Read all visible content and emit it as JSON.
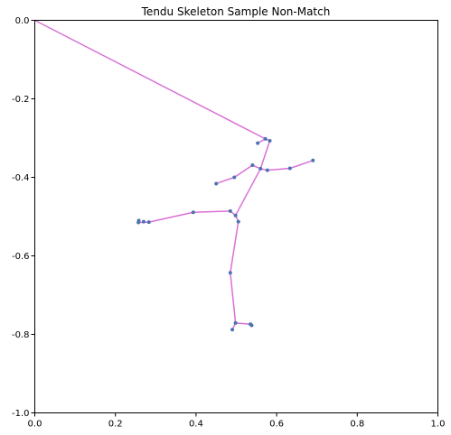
{
  "chart_data": {
    "type": "scatter",
    "title": "Tendu Skeleton Sample Non-Match",
    "xlabel": "",
    "ylabel": "",
    "xlim": [
      0.0,
      1.0
    ],
    "ylim": [
      -1.0,
      0.0
    ],
    "xticks": [
      "0.0",
      "0.2",
      "0.4",
      "0.6",
      "0.8",
      "1.0"
    ],
    "yticks": [
      "0.0",
      "-0.2",
      "-0.4",
      "-0.6",
      "-0.8",
      "-1.0"
    ],
    "grid": false,
    "legend": "none",
    "line_color": "#da70d6",
    "point_color": "#4c72b0",
    "points": [
      {
        "x": 0.583,
        "y": -0.307
      },
      {
        "x": 0.572,
        "y": -0.302
      },
      {
        "x": 0.553,
        "y": -0.313
      },
      {
        "x": 0.56,
        "y": -0.378
      },
      {
        "x": 0.54,
        "y": -0.369
      },
      {
        "x": 0.495,
        "y": -0.4
      },
      {
        "x": 0.45,
        "y": -0.416
      },
      {
        "x": 0.577,
        "y": -0.382
      },
      {
        "x": 0.633,
        "y": -0.377
      },
      {
        "x": 0.69,
        "y": -0.357
      },
      {
        "x": 0.498,
        "y": -0.497
      },
      {
        "x": 0.485,
        "y": -0.486
      },
      {
        "x": 0.393,
        "y": -0.489
      },
      {
        "x": 0.283,
        "y": -0.514
      },
      {
        "x": 0.27,
        "y": -0.513
      },
      {
        "x": 0.258,
        "y": -0.51
      },
      {
        "x": 0.257,
        "y": -0.515
      },
      {
        "x": 0.505,
        "y": -0.513
      },
      {
        "x": 0.485,
        "y": -0.643
      },
      {
        "x": 0.498,
        "y": -0.771
      },
      {
        "x": 0.49,
        "y": -0.788
      },
      {
        "x": 0.535,
        "y": -0.774
      },
      {
        "x": 0.538,
        "y": -0.777
      }
    ],
    "segments": [
      [
        [
          0.0,
          0.0
        ],
        [
          0.572,
          -0.302
        ]
      ],
      [
        [
          0.572,
          -0.302
        ],
        [
          0.583,
          -0.307
        ]
      ],
      [
        [
          0.572,
          -0.302
        ],
        [
          0.553,
          -0.313
        ]
      ],
      [
        [
          0.583,
          -0.307
        ],
        [
          0.56,
          -0.378
        ]
      ],
      [
        [
          0.56,
          -0.378
        ],
        [
          0.54,
          -0.369
        ]
      ],
      [
        [
          0.54,
          -0.369
        ],
        [
          0.495,
          -0.4
        ]
      ],
      [
        [
          0.495,
          -0.4
        ],
        [
          0.45,
          -0.416
        ]
      ],
      [
        [
          0.56,
          -0.378
        ],
        [
          0.577,
          -0.382
        ]
      ],
      [
        [
          0.577,
          -0.382
        ],
        [
          0.633,
          -0.377
        ]
      ],
      [
        [
          0.633,
          -0.377
        ],
        [
          0.69,
          -0.357
        ]
      ],
      [
        [
          0.56,
          -0.378
        ],
        [
          0.498,
          -0.497
        ]
      ],
      [
        [
          0.498,
          -0.497
        ],
        [
          0.485,
          -0.486
        ]
      ],
      [
        [
          0.485,
          -0.486
        ],
        [
          0.393,
          -0.489
        ]
      ],
      [
        [
          0.393,
          -0.489
        ],
        [
          0.283,
          -0.514
        ]
      ],
      [
        [
          0.283,
          -0.514
        ],
        [
          0.257,
          -0.515
        ]
      ],
      [
        [
          0.498,
          -0.497
        ],
        [
          0.505,
          -0.513
        ]
      ],
      [
        [
          0.505,
          -0.513
        ],
        [
          0.485,
          -0.643
        ]
      ],
      [
        [
          0.485,
          -0.643
        ],
        [
          0.498,
          -0.771
        ]
      ],
      [
        [
          0.498,
          -0.771
        ],
        [
          0.49,
          -0.788
        ]
      ],
      [
        [
          0.498,
          -0.771
        ],
        [
          0.535,
          -0.774
        ]
      ],
      [
        [
          0.535,
          -0.774
        ],
        [
          0.538,
          -0.777
        ]
      ]
    ]
  }
}
